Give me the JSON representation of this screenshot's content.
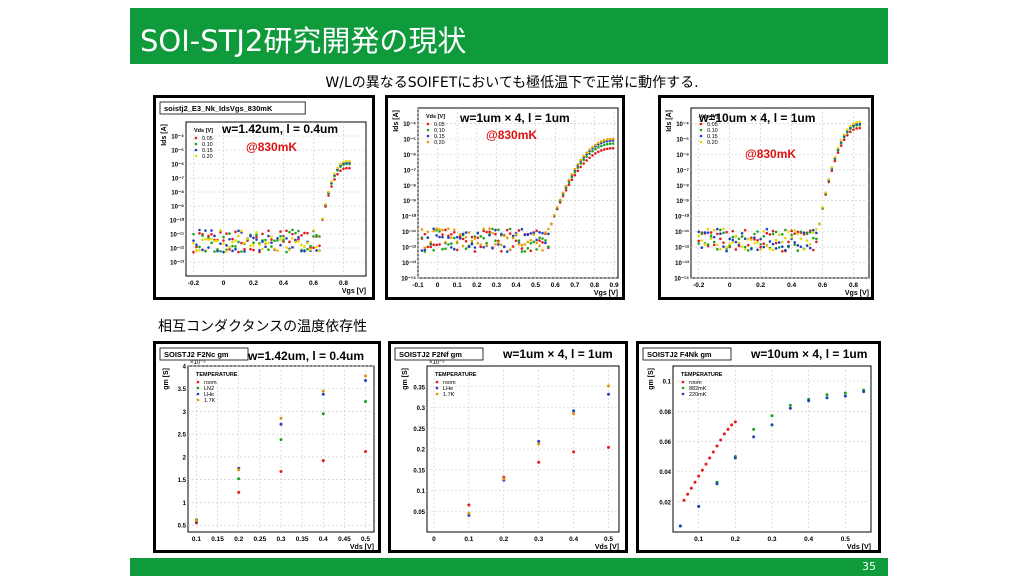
{
  "slide": {
    "title": "SOI-STJ2研究開発の現状",
    "subtitle": "W/Lの異なるSOIFETにおいても極低温下で正常に動作する.",
    "section2": "相互コンダクタンスの温度依存性",
    "page": "35",
    "colors": {
      "accent": "#0f9b3c",
      "highlight": "#e01010"
    }
  },
  "panels": [
    {
      "label": "w=1.42um, l = 0.4um",
      "temp": "@830mK"
    },
    {
      "label": "w=1um × 4, l = 1um",
      "temp": "@830mK"
    },
    {
      "label": "w=10um × 4, l = 1um",
      "temp": "@830mK"
    },
    {
      "label": "w=1.42um, l = 0.4um"
    },
    {
      "label": "w=1um × 4, l = 1um"
    },
    {
      "label": "w=10um × 4, l = 1um"
    }
  ],
  "chart_data": [
    {
      "type": "scatter",
      "log_y": true,
      "title": "soistj2_E3_Nk_IdsVgs_830mK",
      "xlabel": "Vgs [V]",
      "ylabel": "Ids [A]",
      "xlim": [
        -0.25,
        0.95
      ],
      "ylim": [
        1e-14,
        0.001
      ],
      "xticks": [
        -0.2,
        0,
        0.2,
        0.4,
        0.6,
        0.8
      ],
      "xticklabels": [
        "-0.2",
        "0",
        "0.2",
        "0.4",
        "0.6",
        "0.8"
      ],
      "yticks": [
        1e-13,
        1e-12,
        1e-11,
        1e-10,
        1e-09,
        1e-08,
        1e-07,
        1e-06,
        1e-05,
        0.0001
      ],
      "yticklabels": [
        "10⁻¹³",
        "10⁻¹²",
        "10⁻¹¹",
        "10⁻¹⁰",
        "10⁻⁹",
        "10⁻⁸",
        "10⁻⁷",
        "10⁻⁶",
        "10⁻⁵",
        "10⁻⁴"
      ],
      "legend_title": "Vds [V]",
      "series": [
        {
          "name": "0.05",
          "color": "#e41a1c",
          "noise": [
            -12.3,
            -10.7
          ],
          "vth": 0.65,
          "sat": 0.82,
          "sat_log": -6.3,
          "xmin": -0.2,
          "xmax": 0.85,
          "step": 0.02
        },
        {
          "name": "0.10",
          "color": "#1aa51a",
          "noise": [
            -12.3,
            -10.7
          ],
          "vth": 0.65,
          "sat": 0.82,
          "sat_log": -6.0,
          "xmin": -0.2,
          "xmax": 0.85,
          "step": 0.02
        },
        {
          "name": "0.15",
          "color": "#1f3fc0",
          "noise": [
            -12.3,
            -10.7
          ],
          "vth": 0.65,
          "sat": 0.82,
          "sat_log": -5.9,
          "xmin": -0.2,
          "xmax": 0.85,
          "step": 0.02
        },
        {
          "name": "0.20",
          "color": "#e8d800",
          "noise": [
            -12.3,
            -10.7
          ],
          "vth": 0.65,
          "sat": 0.82,
          "sat_log": -5.8,
          "xmin": -0.2,
          "xmax": 0.85,
          "step": 0.02
        }
      ]
    },
    {
      "type": "scatter",
      "log_y": true,
      "xlabel": "Vgs [V]",
      "ylabel": "Ids [A]",
      "xlim": [
        -0.1,
        0.92
      ],
      "ylim": [
        1e-14,
        0.001
      ],
      "xticks": [
        -0.1,
        0,
        0.1,
        0.2,
        0.3,
        0.4,
        0.5,
        0.6,
        0.7,
        0.8,
        0.9
      ],
      "xticklabels": [
        "-0.1",
        "0",
        "0.1",
        "0.2",
        "0.3",
        "0.4",
        "0.5",
        "0.6",
        "0.7",
        "0.8",
        "0.9"
      ],
      "yticks": [
        1e-14,
        1e-13,
        1e-12,
        1e-11,
        1e-10,
        1e-09,
        1e-08,
        1e-07,
        1e-06,
        1e-05,
        0.0001
      ],
      "yticklabels": [
        "10⁻¹⁴",
        "10⁻¹³",
        "10⁻¹²",
        "10⁻¹¹",
        "10⁻¹⁰",
        "10⁻⁹",
        "10⁻⁸",
        "10⁻⁷",
        "10⁻⁶",
        "10⁻⁵",
        "10⁻⁴"
      ],
      "legend_title": "Vds [V]",
      "series": [
        {
          "name": "0.05",
          "color": "#e41a1c",
          "noise": [
            -12.3,
            -10.8
          ],
          "vth": 0.58,
          "sat": 0.9,
          "sat_log": -5.6,
          "xmin": -0.08,
          "xmax": 0.9,
          "step": 0.015
        },
        {
          "name": "0.10",
          "color": "#1aa51a",
          "noise": [
            -12.3,
            -10.8
          ],
          "vth": 0.58,
          "sat": 0.9,
          "sat_log": -5.3,
          "xmin": -0.08,
          "xmax": 0.9,
          "step": 0.015
        },
        {
          "name": "0.15",
          "color": "#1f3fc0",
          "noise": [
            -12.3,
            -10.8
          ],
          "vth": 0.58,
          "sat": 0.9,
          "sat_log": -5.1,
          "xmin": -0.08,
          "xmax": 0.9,
          "step": 0.015
        },
        {
          "name": "0.20",
          "color": "#e8a000",
          "noise": [
            -12.3,
            -10.8
          ],
          "vth": 0.58,
          "sat": 0.9,
          "sat_log": -5.0,
          "xmin": -0.08,
          "xmax": 0.9,
          "step": 0.015
        }
      ]
    },
    {
      "type": "scatter",
      "log_y": true,
      "xlabel": "Vgs [V]",
      "ylabel": "Ids [A]",
      "xlim": [
        -0.25,
        0.9
      ],
      "ylim": [
        1e-14,
        0.001
      ],
      "xticks": [
        -0.2,
        0,
        0.2,
        0.4,
        0.6,
        0.8
      ],
      "xticklabels": [
        "-0.2",
        "0",
        "0.2",
        "0.4",
        "0.6",
        "0.8"
      ],
      "yticks": [
        1e-14,
        1e-13,
        1e-12,
        1e-11,
        1e-10,
        1e-09,
        1e-08,
        1e-07,
        1e-06,
        1e-05,
        0.0001
      ],
      "yticklabels": [
        "10⁻¹⁴",
        "10⁻¹³",
        "10⁻¹²",
        "10⁻¹¹",
        "10⁻¹⁰",
        "10⁻⁹",
        "10⁻⁸",
        "10⁻⁷",
        "10⁻⁶",
        "10⁻⁵",
        "10⁻⁴"
      ],
      "legend_title": "Vds [V]",
      "series": [
        {
          "name": "0.05",
          "color": "#e41a1c",
          "noise": [
            -12.3,
            -10.8
          ],
          "vth": 0.58,
          "sat": 0.84,
          "sat_log": -4.3,
          "xmin": -0.2,
          "xmax": 0.85,
          "step": 0.02
        },
        {
          "name": "0.10",
          "color": "#1aa51a",
          "noise": [
            -12.3,
            -10.8
          ],
          "vth": 0.58,
          "sat": 0.84,
          "sat_log": -4.1,
          "xmin": -0.2,
          "xmax": 0.85,
          "step": 0.02
        },
        {
          "name": "0.15",
          "color": "#1f3fc0",
          "noise": [
            -12.3,
            -10.8
          ],
          "vth": 0.58,
          "sat": 0.84,
          "sat_log": -4.0,
          "xmin": -0.2,
          "xmax": 0.85,
          "step": 0.02
        },
        {
          "name": "0.20",
          "color": "#e8d800",
          "noise": [
            -12.3,
            -10.8
          ],
          "vth": 0.58,
          "sat": 0.84,
          "sat_log": -3.9,
          "xmin": -0.2,
          "xmax": 0.85,
          "step": 0.02
        }
      ]
    },
    {
      "type": "scatter",
      "log_y": false,
      "title": "SOISTJ2 F2Nc gm",
      "xlabel": "Vds [V]",
      "ylabel": "gm [S]",
      "yexp": "×10⁻³",
      "xlim": [
        0.08,
        0.52
      ],
      "ylim": [
        0.35,
        4.0
      ],
      "xticks": [
        0.1,
        0.15,
        0.2,
        0.25,
        0.3,
        0.35,
        0.4,
        0.45,
        0.5
      ],
      "xticklabels": [
        "0.1",
        "0.15",
        "0.2",
        "0.25",
        "0.3",
        "0.35",
        "0.4",
        "0.45",
        "0.5"
      ],
      "yticks": [
        0.5,
        1,
        1.5,
        2,
        2.5,
        3,
        3.5,
        4
      ],
      "yticklabels": [
        "0.5",
        "1",
        "1.5",
        "2",
        "2.5",
        "3",
        "3.5",
        "4"
      ],
      "legend_title": "TEMPERATURE",
      "series": [
        {
          "name": "room",
          "color": "#e41a1c",
          "points": [
            [
              0.1,
              0.55
            ],
            [
              0.2,
              1.22
            ],
            [
              0.3,
              1.68
            ],
            [
              0.4,
              1.92
            ],
            [
              0.5,
              2.12
            ]
          ]
        },
        {
          "name": "LN2",
          "color": "#1aa51a",
          "points": [
            [
              0.1,
              0.62
            ],
            [
              0.2,
              1.52
            ],
            [
              0.3,
              2.38
            ],
            [
              0.4,
              2.95
            ],
            [
              0.5,
              3.22
            ]
          ]
        },
        {
          "name": "LHe",
          "color": "#1f3fc0",
          "points": [
            [
              0.1,
              0.58
            ],
            [
              0.2,
              1.75
            ],
            [
              0.3,
              2.72
            ],
            [
              0.4,
              3.38
            ],
            [
              0.5,
              3.68
            ]
          ]
        },
        {
          "name": "1.7K",
          "color": "#e89000",
          "points": [
            [
              0.1,
              0.6
            ],
            [
              0.2,
              1.72
            ],
            [
              0.3,
              2.85
            ],
            [
              0.4,
              3.45
            ],
            [
              0.5,
              3.78
            ]
          ]
        }
      ]
    },
    {
      "type": "scatter",
      "log_y": false,
      "title": "SOISTJ2 F2Nf gm",
      "xlabel": "Vds [V]",
      "ylabel": "gm [S]",
      "yexp": "×10⁻³",
      "xlim": [
        -0.02,
        0.53
      ],
      "ylim": [
        0,
        0.4
      ],
      "xticks": [
        0,
        0.1,
        0.2,
        0.3,
        0.4,
        0.5
      ],
      "xticklabels": [
        "0",
        "0.1",
        "0.2",
        "0.3",
        "0.4",
        "0.5"
      ],
      "yticks": [
        0.05,
        0.1,
        0.15,
        0.2,
        0.25,
        0.3,
        0.35
      ],
      "yticklabels": [
        "0.05",
        "0.1",
        "0.15",
        "0.2",
        "0.25",
        "0.3",
        "0.35"
      ],
      "legend_title": "TEMPERATURE",
      "series": [
        {
          "name": "room",
          "color": "#e41a1c",
          "points": [
            [
              0.1,
              0.065
            ],
            [
              0.2,
              0.132
            ],
            [
              0.3,
              0.168
            ],
            [
              0.4,
              0.193
            ],
            [
              0.5,
              0.204
            ]
          ]
        },
        {
          "name": "LHe",
          "color": "#1f3fc0",
          "points": [
            [
              0.1,
              0.04
            ],
            [
              0.2,
              0.125
            ],
            [
              0.3,
              0.218
            ],
            [
              0.4,
              0.292
            ],
            [
              0.5,
              0.332
            ]
          ]
        },
        {
          "name": "1.7K",
          "color": "#e89000",
          "points": [
            [
              0.1,
              0.045
            ],
            [
              0.2,
              0.128
            ],
            [
              0.3,
              0.212
            ],
            [
              0.4,
              0.285
            ],
            [
              0.5,
              0.352
            ]
          ]
        }
      ]
    },
    {
      "type": "scatter",
      "log_y": false,
      "title": "SOISTJ2 F4Nk gm",
      "xlabel": "Vds [V]",
      "ylabel": "gm [S]",
      "xlim": [
        0.03,
        0.57
      ],
      "ylim": [
        0,
        0.11
      ],
      "xticks": [
        0.1,
        0.2,
        0.3,
        0.4,
        0.5
      ],
      "xticklabels": [
        "0.1",
        "0.2",
        "0.3",
        "0.4",
        "0.5"
      ],
      "yticks": [
        0.02,
        0.04,
        0.06,
        0.08,
        0.1
      ],
      "yticklabels": [
        "0.02",
        "0.04",
        "0.06",
        "0.08",
        "0.1"
      ],
      "legend_title": "TEMPERATURE",
      "series": [
        {
          "name": "room",
          "color": "#e41a1c",
          "points": [
            [
              0.06,
              0.021
            ],
            [
              0.07,
              0.025
            ],
            [
              0.08,
              0.029
            ],
            [
              0.09,
              0.033
            ],
            [
              0.1,
              0.037
            ],
            [
              0.11,
              0.041
            ],
            [
              0.12,
              0.045
            ],
            [
              0.13,
              0.049
            ],
            [
              0.14,
              0.053
            ],
            [
              0.15,
              0.057
            ],
            [
              0.16,
              0.061
            ],
            [
              0.17,
              0.065
            ],
            [
              0.18,
              0.068
            ],
            [
              0.19,
              0.071
            ],
            [
              0.2,
              0.073
            ]
          ]
        },
        {
          "name": "882mK",
          "color": "#1aa51a",
          "points": [
            [
              0.05,
              0.004
            ],
            [
              0.1,
              0.017
            ],
            [
              0.15,
              0.033
            ],
            [
              0.2,
              0.05
            ],
            [
              0.25,
              0.068
            ],
            [
              0.3,
              0.077
            ],
            [
              0.35,
              0.084
            ],
            [
              0.4,
              0.088
            ],
            [
              0.45,
              0.091
            ],
            [
              0.5,
              0.092
            ],
            [
              0.55,
              0.094
            ]
          ]
        },
        {
          "name": "220mK",
          "color": "#1f3fc0",
          "points": [
            [
              0.05,
              0.004
            ],
            [
              0.1,
              0.017
            ],
            [
              0.15,
              0.032
            ],
            [
              0.2,
              0.049
            ],
            [
              0.25,
              0.063
            ],
            [
              0.3,
              0.071
            ],
            [
              0.35,
              0.082
            ],
            [
              0.4,
              0.087
            ],
            [
              0.45,
              0.089
            ],
            [
              0.5,
              0.09
            ],
            [
              0.55,
              0.093
            ]
          ]
        }
      ]
    }
  ]
}
